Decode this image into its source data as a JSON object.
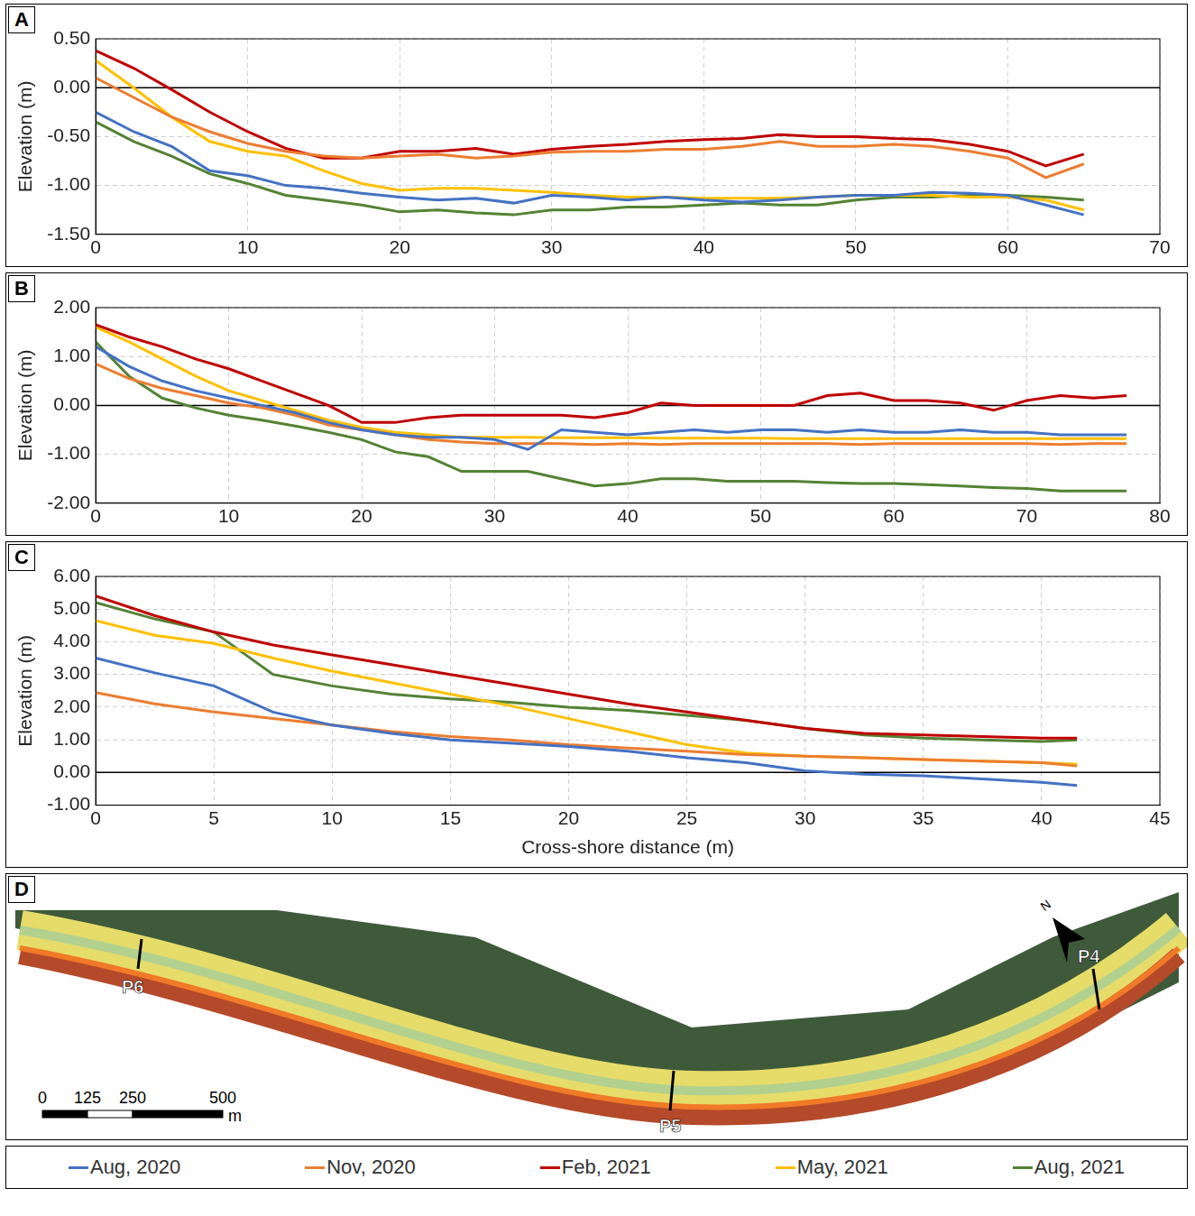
{
  "chart_data": [
    {
      "type": "line",
      "label": "A",
      "y_label": "Elevation (m)",
      "grid": true,
      "xlim": [
        0,
        70
      ],
      "xticks": [
        0,
        10,
        20,
        30,
        40,
        50,
        60,
        70
      ],
      "ylim": [
        -1.5,
        0.5
      ],
      "yticks": [
        {
          "value": -1.5,
          "label": "-1.50"
        },
        {
          "value": -1,
          "label": "-1.00"
        },
        {
          "value": -0.5,
          "label": "-0.50"
        },
        {
          "value": 0,
          "label": "0.00"
        },
        {
          "value": 0.5,
          "label": "0.50"
        }
      ],
      "x": [
        0,
        2.5,
        5,
        7.5,
        10,
        12.5,
        15,
        17.5,
        20,
        22.5,
        25,
        27.5,
        30,
        32.5,
        35,
        37.5,
        40,
        42.5,
        45,
        47.5,
        50,
        52.5,
        55,
        57.5,
        60,
        62.5,
        65
      ],
      "series": [
        {
          "name": "Aug, 2020",
          "color": "#4472c4",
          "values": [
            -0.25,
            -0.45,
            -0.6,
            -0.85,
            -0.9,
            -1.0,
            -1.03,
            -1.08,
            -1.12,
            -1.15,
            -1.13,
            -1.18,
            -1.1,
            -1.12,
            -1.15,
            -1.12,
            -1.15,
            -1.17,
            -1.15,
            -1.12,
            -1.1,
            -1.1,
            -1.07,
            -1.08,
            -1.1,
            -1.2,
            -1.3
          ]
        },
        {
          "name": "Nov, 2020",
          "color": "#ed7d31",
          "values": [
            0.1,
            -0.1,
            -0.3,
            -0.45,
            -0.57,
            -0.65,
            -0.7,
            -0.72,
            -0.7,
            -0.68,
            -0.72,
            -0.7,
            -0.66,
            -0.65,
            -0.65,
            -0.63,
            -0.63,
            -0.6,
            -0.55,
            -0.6,
            -0.6,
            -0.58,
            -0.6,
            -0.65,
            -0.72,
            -0.92,
            -0.78
          ]
        },
        {
          "name": "Feb, 2021",
          "color": "#c00000",
          "values": [
            0.38,
            0.2,
            -0.02,
            -0.25,
            -0.45,
            -0.62,
            -0.72,
            -0.72,
            -0.65,
            -0.65,
            -0.62,
            -0.68,
            -0.63,
            -0.6,
            -0.58,
            -0.55,
            -0.53,
            -0.52,
            -0.48,
            -0.5,
            -0.5,
            -0.52,
            -0.53,
            -0.58,
            -0.65,
            -0.8,
            -0.68
          ]
        },
        {
          "name": "May, 2021",
          "color": "#ffc000",
          "values": [
            0.28,
            0.0,
            -0.3,
            -0.55,
            -0.65,
            -0.7,
            -0.85,
            -0.98,
            -1.05,
            -1.03,
            -1.03,
            -1.05,
            -1.07,
            -1.1,
            -1.12,
            -1.12,
            -1.13,
            -1.13,
            -1.13,
            -1.12,
            -1.1,
            -1.1,
            -1.1,
            -1.12,
            -1.12,
            -1.15,
            -1.25
          ]
        },
        {
          "name": "Aug, 2021",
          "color": "#548235",
          "values": [
            -0.35,
            -0.55,
            -0.7,
            -0.88,
            -0.98,
            -1.1,
            -1.15,
            -1.2,
            -1.27,
            -1.25,
            -1.28,
            -1.3,
            -1.25,
            -1.25,
            -1.22,
            -1.22,
            -1.2,
            -1.18,
            -1.2,
            -1.2,
            -1.15,
            -1.12,
            -1.12,
            -1.1,
            -1.1,
            -1.12,
            -1.15
          ]
        }
      ]
    },
    {
      "type": "line",
      "label": "B",
      "y_label": "Elevation (m)",
      "grid": true,
      "xlim": [
        0,
        80
      ],
      "xticks": [
        0,
        10,
        20,
        30,
        40,
        50,
        60,
        70,
        80
      ],
      "ylim": [
        -2,
        2
      ],
      "yticks": [
        {
          "value": -2,
          "label": "-2.00"
        },
        {
          "value": -1,
          "label": "-1.00"
        },
        {
          "value": 0,
          "label": "0.00"
        },
        {
          "value": 1,
          "label": "1.00"
        },
        {
          "value": 2,
          "label": "2.00"
        }
      ],
      "x": [
        0,
        2.5,
        5,
        7.5,
        10,
        12.5,
        15,
        17.5,
        20,
        22.5,
        25,
        27.5,
        30,
        32.5,
        35,
        37.5,
        40,
        42.5,
        45,
        47.5,
        50,
        52.5,
        55,
        57.5,
        60,
        62.5,
        65,
        67.5,
        70,
        72.5,
        75,
        77.5
      ],
      "series": [
        {
          "name": "Aug, 2020",
          "color": "#4472c4",
          "values": [
            1.2,
            0.8,
            0.5,
            0.3,
            0.15,
            0.0,
            -0.15,
            -0.35,
            -0.5,
            -0.6,
            -0.65,
            -0.65,
            -0.7,
            -0.9,
            -0.5,
            -0.55,
            -0.6,
            -0.55,
            -0.5,
            -0.55,
            -0.5,
            -0.5,
            -0.55,
            -0.5,
            -0.55,
            -0.55,
            -0.5,
            -0.55,
            -0.55,
            -0.6,
            -0.6,
            -0.6
          ]
        },
        {
          "name": "Nov, 2020",
          "color": "#ed7d31",
          "values": [
            0.85,
            0.55,
            0.35,
            0.2,
            0.05,
            -0.05,
            -0.2,
            -0.4,
            -0.5,
            -0.6,
            -0.7,
            -0.75,
            -0.78,
            -0.78,
            -0.78,
            -0.8,
            -0.78,
            -0.8,
            -0.78,
            -0.78,
            -0.78,
            -0.78,
            -0.78,
            -0.8,
            -0.78,
            -0.78,
            -0.78,
            -0.78,
            -0.78,
            -0.8,
            -0.78,
            -0.78
          ]
        },
        {
          "name": "Feb, 2021",
          "color": "#c00000",
          "values": [
            1.65,
            1.4,
            1.2,
            0.95,
            0.75,
            0.5,
            0.25,
            0.0,
            -0.35,
            -0.35,
            -0.25,
            -0.2,
            -0.2,
            -0.2,
            -0.2,
            -0.25,
            -0.15,
            0.05,
            0.0,
            0.0,
            0.0,
            0.0,
            0.2,
            0.25,
            0.1,
            0.1,
            0.05,
            -0.1,
            0.1,
            0.2,
            0.15,
            0.2
          ]
        },
        {
          "name": "May, 2021",
          "color": "#ffc000",
          "values": [
            1.6,
            1.3,
            0.95,
            0.6,
            0.3,
            0.1,
            -0.1,
            -0.3,
            -0.45,
            -0.55,
            -0.6,
            -0.65,
            -0.65,
            -0.65,
            -0.66,
            -0.66,
            -0.66,
            -0.67,
            -0.67,
            -0.67,
            -0.67,
            -0.68,
            -0.68,
            -0.68,
            -0.68,
            -0.68,
            -0.68,
            -0.68,
            -0.68,
            -0.68,
            -0.68,
            -0.68
          ]
        },
        {
          "name": "Aug, 2021",
          "color": "#548235",
          "values": [
            1.3,
            0.6,
            0.15,
            -0.05,
            -0.2,
            -0.3,
            -0.42,
            -0.55,
            -0.7,
            -0.95,
            -1.05,
            -1.35,
            -1.35,
            -1.35,
            -1.5,
            -1.65,
            -1.6,
            -1.5,
            -1.5,
            -1.55,
            -1.55,
            -1.55,
            -1.58,
            -1.6,
            -1.6,
            -1.62,
            -1.65,
            -1.68,
            -1.7,
            -1.75,
            -1.75,
            -1.75
          ]
        }
      ]
    },
    {
      "type": "line",
      "label": "C",
      "y_label": "Elevation (m)",
      "x_label": "Cross-shore distance (m)",
      "grid": true,
      "legend": "bottom",
      "xlim": [
        0,
        45
      ],
      "xticks": [
        0,
        5,
        10,
        15,
        20,
        25,
        30,
        35,
        40,
        45
      ],
      "ylim": [
        -1,
        6
      ],
      "yticks": [
        {
          "value": -1,
          "label": "-1.00"
        },
        {
          "value": 0,
          "label": "0.00"
        },
        {
          "value": 1,
          "label": "1.00"
        },
        {
          "value": 2,
          "label": "2.00"
        },
        {
          "value": 3,
          "label": "3.00"
        },
        {
          "value": 4,
          "label": "4.00"
        },
        {
          "value": 5,
          "label": "5.00"
        },
        {
          "value": 6,
          "label": "6.00"
        }
      ],
      "x": [
        0,
        2.5,
        5,
        7.5,
        10,
        12.5,
        15,
        17.5,
        20,
        22.5,
        25,
        27.5,
        30,
        32.5,
        35,
        37.5,
        40,
        41.5
      ],
      "series": [
        {
          "name": "Aug, 2020",
          "color": "#4472c4",
          "values": [
            3.5,
            3.05,
            2.65,
            1.85,
            1.45,
            1.2,
            1.0,
            0.9,
            0.8,
            0.65,
            0.45,
            0.3,
            0.05,
            -0.05,
            -0.1,
            -0.2,
            -0.3,
            -0.4
          ]
        },
        {
          "name": "Nov, 2020",
          "color": "#ed7d31",
          "values": [
            2.45,
            2.1,
            1.85,
            1.65,
            1.45,
            1.25,
            1.1,
            1.0,
            0.85,
            0.75,
            0.65,
            0.55,
            0.5,
            0.45,
            0.4,
            0.35,
            0.3,
            0.2
          ]
        },
        {
          "name": "Feb, 2021",
          "color": "#c00000",
          "values": [
            5.4,
            4.8,
            4.3,
            3.9,
            3.6,
            3.3,
            3.0,
            2.7,
            2.4,
            2.1,
            1.85,
            1.6,
            1.35,
            1.2,
            1.15,
            1.1,
            1.05,
            1.05
          ]
        },
        {
          "name": "May, 2021",
          "color": "#ffc000",
          "values": [
            4.65,
            4.2,
            3.95,
            3.5,
            3.1,
            2.75,
            2.4,
            2.05,
            1.65,
            1.25,
            0.85,
            0.6,
            0.5,
            0.45,
            0.4,
            0.35,
            0.3,
            0.25
          ]
        },
        {
          "name": "Aug, 2021",
          "color": "#548235",
          "values": [
            5.2,
            4.7,
            4.3,
            3.0,
            2.65,
            2.4,
            2.25,
            2.15,
            2.0,
            1.9,
            1.75,
            1.6,
            1.35,
            1.15,
            1.05,
            1.0,
            0.95,
            1.0
          ]
        }
      ]
    }
  ],
  "map": {
    "label": "D",
    "profiles": [
      "P6",
      "P5",
      "P4"
    ],
    "north": "N",
    "scale_bar": {
      "ticks": [
        0,
        125,
        250,
        500
      ],
      "unit": "m"
    }
  }
}
